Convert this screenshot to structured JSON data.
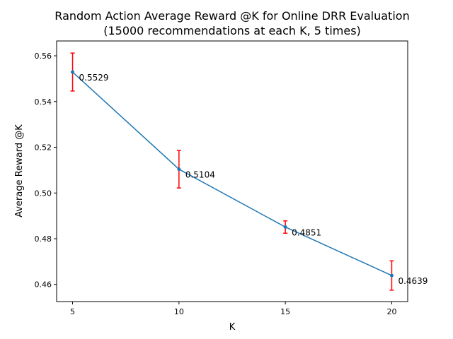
{
  "chart_data": {
    "type": "line",
    "title": "Random Action Average Reward @K for Online DRR Evaluation",
    "subtitle": "(15000 recommendations at each K, 5 times)",
    "xlabel": "K",
    "ylabel": "Average Reward @K",
    "x": [
      5,
      10,
      15,
      20
    ],
    "xticks": [
      "5",
      "10",
      "15",
      "20"
    ],
    "yticks": [
      "0.46",
      "0.48",
      "0.50",
      "0.52",
      "0.54",
      "0.56"
    ],
    "xlim": [
      4.25,
      20.75
    ],
    "ylim": [
      0.4525,
      0.5665
    ],
    "grid": false,
    "series": [
      {
        "values": [
          0.5529,
          0.5104,
          0.4851,
          0.4639
        ],
        "error": [
          0.0083,
          0.0082,
          0.0027,
          0.0064
        ],
        "labels": [
          "0.5529",
          "0.5104",
          "0.4851",
          "0.4639"
        ]
      }
    ],
    "colors": {
      "line": "#1f77b4",
      "errorbar": "#ff0000",
      "axis": "#000000"
    }
  }
}
